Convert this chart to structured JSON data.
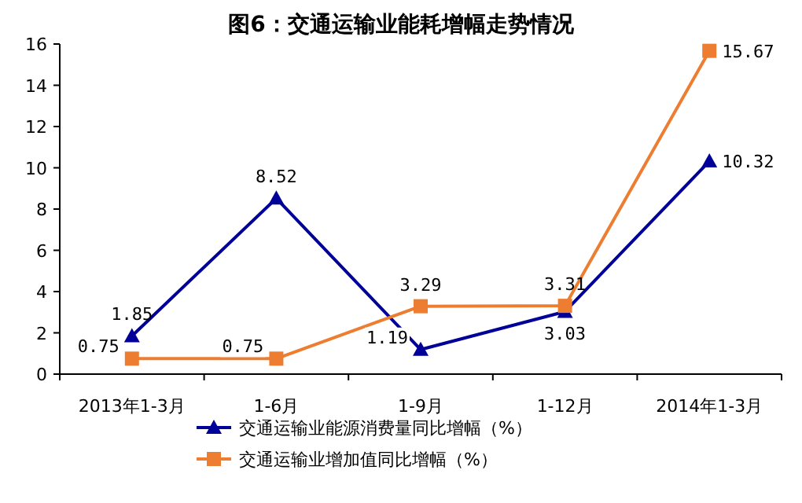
{
  "chart_data": {
    "type": "line",
    "title": "图6：交通运输业能耗增幅走势情况",
    "categories": [
      "2013年1-3月",
      "1-6月",
      "1-9月",
      "1-12月",
      "2014年1-3月"
    ],
    "series": [
      {
        "name": "交通运输业能源消费量同比增幅（%）",
        "color": "#000099",
        "marker": "triangle",
        "values": [
          1.85,
          8.52,
          1.19,
          3.03,
          10.32
        ]
      },
      {
        "name": "交通运输业增加值同比增幅（%）",
        "color": "#ed7d31",
        "marker": "square",
        "values": [
          0.75,
          0.75,
          3.29,
          3.31,
          15.67
        ]
      }
    ],
    "ylim": [
      0,
      16
    ],
    "yticks": [
      0,
      2,
      4,
      6,
      8,
      10,
      12,
      14,
      16
    ],
    "data_labels": true,
    "legend": "bottom",
    "grid": false
  }
}
